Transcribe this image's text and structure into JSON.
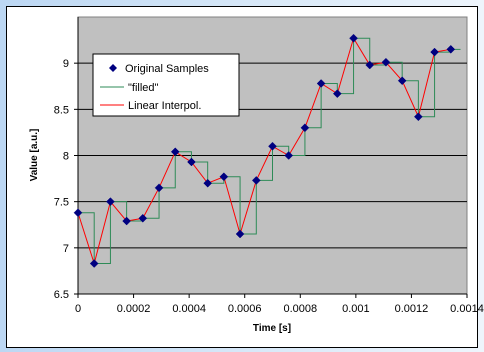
{
  "chart_data": {
    "type": "line",
    "title": "",
    "xlabel": "Time [s]",
    "ylabel": "Value [a.u.]",
    "xlim": [
      0,
      0.0014
    ],
    "ylim": [
      6.5,
      9.5
    ],
    "x_ticks": [
      0,
      0.0002,
      0.0004,
      0.0006,
      0.0008,
      0.001,
      0.0012,
      0.0014
    ],
    "x_tick_labels": [
      "0",
      "0.0002",
      "0.0004",
      "0.0006",
      "0.0008",
      "0.001",
      "0.0012",
      "0.0014"
    ],
    "y_ticks": [
      6.5,
      7,
      7.5,
      8,
      8.5,
      9
    ],
    "y_tick_labels": [
      "6.5",
      "7",
      "7.5",
      "8",
      "8.5",
      "9"
    ],
    "grid": "horizontal",
    "plot_background": "#c0c0c0",
    "legend_position": "top-left",
    "series": [
      {
        "name": "Original Samples",
        "style": "markers",
        "marker": "diamond",
        "color": "#000080",
        "x": [
          0,
          5.83e-05,
          0.0001167,
          0.000175,
          0.0002333,
          0.0002917,
          0.00035,
          0.0004083,
          0.0004667,
          0.000525,
          0.0005833,
          0.0006417,
          0.0007,
          0.0007583,
          0.0008167,
          0.000875,
          0.0009333,
          0.0009917,
          0.00105,
          0.0011083,
          0.0011667,
          0.001225,
          0.0012833,
          0.0013417
        ],
        "y": [
          7.38,
          6.83,
          7.5,
          7.29,
          7.32,
          7.65,
          8.04,
          7.93,
          7.7,
          7.77,
          7.15,
          7.73,
          8.1,
          8.0,
          8.3,
          8.78,
          8.67,
          9.27,
          8.98,
          9.01,
          8.81,
          8.42,
          9.12,
          9.15
        ]
      },
      {
        "name": "\"filled\"",
        "style": "step",
        "color": "#2e8b57"
      },
      {
        "name": "Linear Interpol.",
        "style": "line",
        "color": "#ff0000"
      }
    ]
  }
}
